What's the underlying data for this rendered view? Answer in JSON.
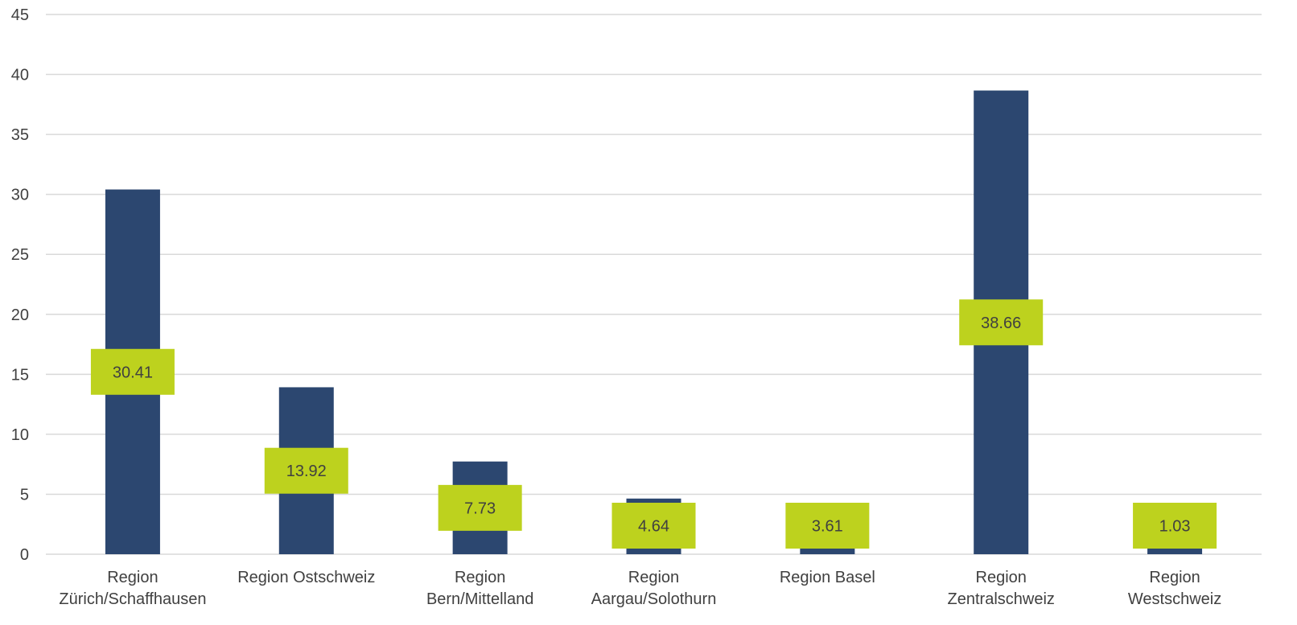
{
  "chart_data": {
    "type": "bar",
    "categories": [
      [
        "Region",
        "Zürich/Schaffhausen"
      ],
      [
        "Region Ostschweiz"
      ],
      [
        "Region",
        "Bern/Mittelland"
      ],
      [
        "Region",
        "Aargau/Solothurn"
      ],
      [
        "Region Basel"
      ],
      [
        "Region",
        "Zentralschweiz"
      ],
      [
        "Region",
        "Westschweiz"
      ]
    ],
    "values": [
      30.41,
      13.92,
      7.73,
      4.64,
      3.61,
      38.66,
      1.03
    ],
    "data_labels": [
      "30.41",
      "13.92",
      "7.73",
      "4.64",
      "3.61",
      "38.66",
      "1.03"
    ],
    "y_ticks": [
      "0",
      "5",
      "10",
      "15",
      "20",
      "25",
      "30",
      "35",
      "40",
      "45"
    ],
    "ylim": [
      0,
      45
    ],
    "grid": true,
    "legend": "none",
    "colors": {
      "bar": "#2c4770",
      "label_bg": "#bdd21e",
      "grid": "#d9d9d9",
      "text": "#404040"
    }
  }
}
